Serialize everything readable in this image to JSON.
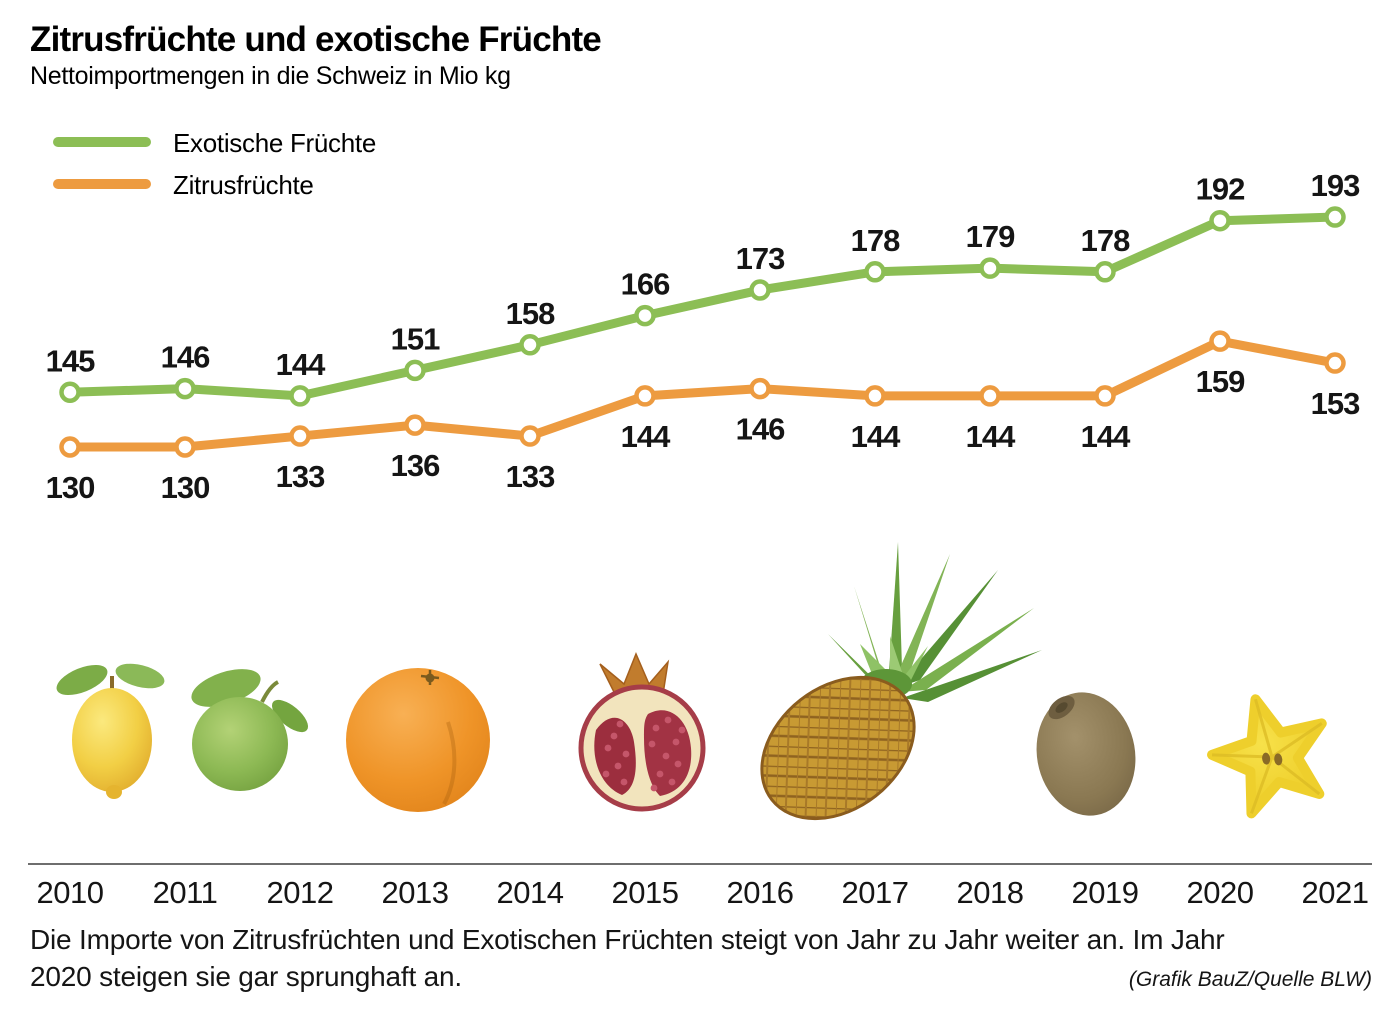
{
  "header": {
    "title": "Zitrusfrüchte und exotische Früchte",
    "subtitle": "Nettoimportmengen in die Schweiz in Mio kg"
  },
  "legend": [
    {
      "label": "Exotische Früchte",
      "color": "#8cbe55"
    },
    {
      "label": "Zitrusfrüchte",
      "color": "#ed9b40"
    }
  ],
  "chart_data": {
    "type": "line",
    "title": "Zitrusfrüchte und exotische Früchte",
    "subtitle": "Nettoimportmengen in die Schweiz in Mio kg",
    "unit": "Mio kg",
    "x": [
      2010,
      2011,
      2012,
      2013,
      2014,
      2015,
      2016,
      2017,
      2018,
      2019,
      2020,
      2021
    ],
    "series": [
      {
        "name": "Exotische Früchte",
        "color": "#8cbe55",
        "values": [
          145,
          146,
          144,
          151,
          158,
          166,
          173,
          178,
          179,
          178,
          192,
          193
        ],
        "label_position": "above"
      },
      {
        "name": "Zitrusfrüchte",
        "color": "#ed9b40",
        "values": [
          130,
          130,
          133,
          136,
          133,
          144,
          146,
          144,
          144,
          144,
          159,
          153
        ],
        "label_position": "below"
      }
    ],
    "data_labels": true,
    "grid": false,
    "legend_position": "top-left",
    "xlabel": "",
    "ylabel": ""
  },
  "fruits": [
    "lemon",
    "lime",
    "orange",
    "pomegranate",
    "pineapple",
    "kiwi",
    "starfruit"
  ],
  "caption": {
    "text": "Die Importe von Zitrusfrüchten und Exotischen Früchten steigt von Jahr zu Jahr weiter an. Im Jahr 2020 steigen sie gar sprunghaft an.",
    "source": "(Grafik BauZ/Quelle BLW)"
  }
}
